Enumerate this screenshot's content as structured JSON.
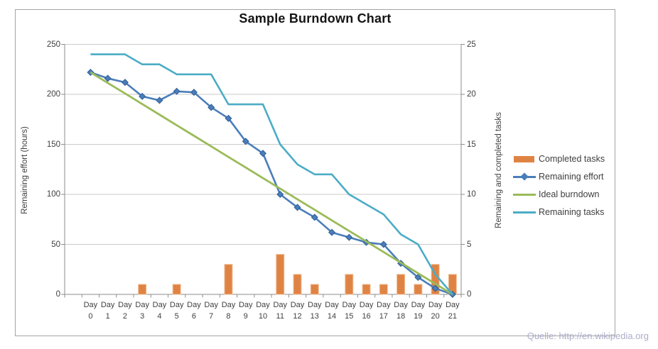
{
  "source_note": "Quelle: http://en.wikipedia.org",
  "chart_data": {
    "type": "combo",
    "title": "Sample Burndown Chart",
    "x_categories": [
      "Day 0",
      "Day 1",
      "Day 2",
      "Day 3",
      "Day 4",
      "Day 5",
      "Day 6",
      "Day 7",
      "Day 8",
      "Day 9",
      "Day 10",
      "Day 11",
      "Day 12",
      "Day 13",
      "Day 14",
      "Day 15",
      "Day 16",
      "Day 17",
      "Day 18",
      "Day 19",
      "Day 20",
      "Day 21"
    ],
    "grid": true,
    "legend_position": "right",
    "axes": {
      "left": {
        "title": "Remaining effort (hours)",
        "range": [
          0,
          250
        ],
        "ticks": [
          0,
          50,
          100,
          150,
          200,
          250
        ]
      },
      "right": {
        "title": "Remaining and  completed tasks",
        "range": [
          0,
          25
        ],
        "ticks": [
          0,
          5,
          10,
          15,
          20,
          25
        ]
      }
    },
    "series": [
      {
        "name": "Completed tasks",
        "type": "bar",
        "axis": "right",
        "color": "#DF8344",
        "edge_color": "#EFBE93",
        "values": [
          0,
          0,
          0,
          1,
          0,
          1,
          0,
          0,
          3,
          0,
          0,
          4,
          2,
          1,
          0,
          2,
          1,
          1,
          2,
          1,
          3,
          2
        ]
      },
      {
        "name": "Remaining effort",
        "type": "line",
        "marker": "diamond",
        "axis": "left",
        "color": "#4A7EBB",
        "marker_edge_color": "#2F5C94",
        "values": [
          222,
          216,
          212,
          198,
          194,
          203,
          202,
          187,
          176,
          153,
          141,
          100,
          87,
          77,
          62,
          57,
          52,
          50,
          31,
          17,
          6,
          0
        ]
      },
      {
        "name": "Ideal burndown",
        "type": "line",
        "axis": "left",
        "color": "#9BBB59",
        "values": [
          222,
          211.4,
          200.9,
          190.3,
          179.7,
          169.1,
          158.6,
          148,
          137.4,
          126.9,
          116.3,
          105.7,
          95.1,
          84.6,
          74,
          63.4,
          52.9,
          42.3,
          31.7,
          21.1,
          10.6,
          0
        ]
      },
      {
        "name": "Remaining tasks",
        "type": "line",
        "axis": "right",
        "color": "#4BACC6",
        "values": [
          24,
          24,
          24,
          23,
          23,
          22,
          22,
          22,
          19,
          19,
          19,
          15,
          13,
          12,
          12,
          10,
          9,
          8,
          6,
          5,
          2,
          0
        ]
      }
    ],
    "colors": {
      "gridline": "#C9C9C9",
      "axis_line": "#8E8E8E",
      "text": "#3F3F3F"
    }
  }
}
